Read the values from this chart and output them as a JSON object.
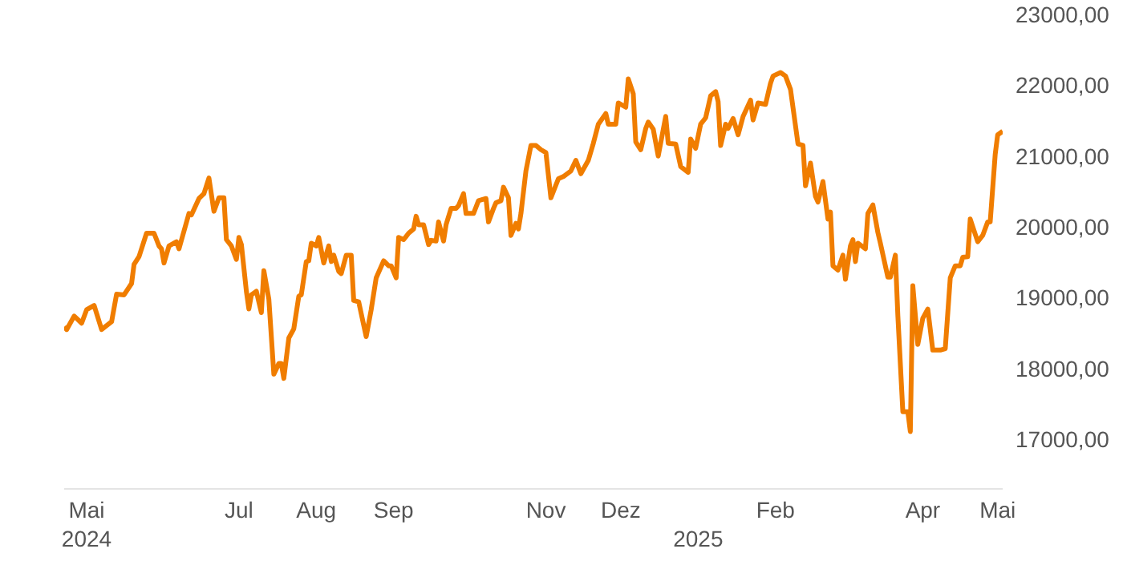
{
  "chart_data": {
    "type": "line",
    "x": [
      "2024-04-22",
      "2024-04-23",
      "2024-04-26",
      "2024-04-29",
      "2024-05-01",
      "2024-05-04",
      "2024-05-07",
      "2024-05-11",
      "2024-05-13",
      "2024-05-16",
      "2024-05-19",
      "2024-05-20",
      "2024-05-22",
      "2024-05-25",
      "2024-05-28",
      "2024-05-30",
      "2024-05-31",
      "2024-06-01",
      "2024-06-03",
      "2024-06-06",
      "2024-06-07",
      "2024-06-11",
      "2024-06-12",
      "2024-06-15",
      "2024-06-17",
      "2024-06-19",
      "2024-06-21",
      "2024-06-23",
      "2024-06-25",
      "2024-06-26",
      "2024-06-28",
      "2024-06-30",
      "2024-07-01",
      "2024-07-02",
      "2024-07-04",
      "2024-07-05",
      "2024-07-06",
      "2024-07-08",
      "2024-07-10",
      "2024-07-11",
      "2024-07-13",
      "2024-07-15",
      "2024-07-17",
      "2024-07-18",
      "2024-07-19",
      "2024-07-21",
      "2024-07-23",
      "2024-07-25",
      "2024-07-26",
      "2024-07-28",
      "2024-07-29",
      "2024-07-30",
      "2024-08-01",
      "2024-08-02",
      "2024-08-04",
      "2024-08-06",
      "2024-08-07",
      "2024-08-08",
      "2024-08-10",
      "2024-08-11",
      "2024-08-13",
      "2024-08-15",
      "2024-08-16",
      "2024-08-18",
      "2024-08-21",
      "2024-08-23",
      "2024-08-25",
      "2024-08-28",
      "2024-08-30",
      "2024-08-31",
      "2024-09-02",
      "2024-09-03",
      "2024-09-05",
      "2024-09-07",
      "2024-09-09",
      "2024-09-10",
      "2024-09-11",
      "2024-09-13",
      "2024-09-15",
      "2024-09-16",
      "2024-09-18",
      "2024-09-19",
      "2024-09-21",
      "2024-09-22",
      "2024-09-24",
      "2024-09-26",
      "2024-09-27",
      "2024-09-29",
      "2024-09-30",
      "2024-10-03",
      "2024-10-05",
      "2024-10-08",
      "2024-10-09",
      "2024-10-11",
      "2024-10-12",
      "2024-10-14",
      "2024-10-15",
      "2024-10-17",
      "2024-10-18",
      "2024-10-20",
      "2024-10-21",
      "2024-10-22",
      "2024-10-24",
      "2024-10-26",
      "2024-10-28",
      "2024-10-30",
      "2024-11-01",
      "2024-11-03",
      "2024-11-06",
      "2024-11-08",
      "2024-11-11",
      "2024-11-13",
      "2024-11-15",
      "2024-11-18",
      "2024-11-20",
      "2024-11-22",
      "2024-11-25",
      "2024-11-26",
      "2024-11-29",
      "2024-11-30",
      "2024-12-03",
      "2024-12-04",
      "2024-12-06",
      "2024-12-07",
      "2024-12-09",
      "2024-12-11",
      "2024-12-12",
      "2024-12-14",
      "2024-12-16",
      "2024-12-19",
      "2024-12-20",
      "2024-12-23",
      "2024-12-25",
      "2024-12-28",
      "2024-12-29",
      "2024-12-31",
      "2025-01-02",
      "2025-01-04",
      "2025-01-06",
      "2025-01-08",
      "2025-01-09",
      "2025-01-10",
      "2025-01-12",
      "2025-01-13",
      "2025-01-15",
      "2025-01-17",
      "2025-01-19",
      "2025-01-22",
      "2025-01-23",
      "2025-01-25",
      "2025-01-28",
      "2025-01-30",
      "2025-01-31",
      "2025-02-03",
      "2025-02-05",
      "2025-02-07",
      "2025-02-10",
      "2025-02-12",
      "2025-02-13",
      "2025-02-15",
      "2025-02-17",
      "2025-02-18",
      "2025-02-20",
      "2025-02-22",
      "2025-02-23",
      "2025-02-24",
      "2025-02-26",
      "2025-02-28",
      "2025-03-01",
      "2025-03-03",
      "2025-03-04",
      "2025-03-05",
      "2025-03-06",
      "2025-03-09",
      "2025-03-10",
      "2025-03-12",
      "2025-03-14",
      "2025-03-15",
      "2025-03-18",
      "2025-03-19",
      "2025-03-21",
      "2025-03-22",
      "2025-03-24",
      "2025-03-26",
      "2025-03-27",
      "2025-03-28",
      "2025-03-30",
      "2025-04-01",
      "2025-04-03",
      "2025-04-05",
      "2025-04-08",
      "2025-04-10",
      "2025-04-12",
      "2025-04-14",
      "2025-04-16",
      "2025-04-17",
      "2025-04-19",
      "2025-04-20",
      "2025-04-23",
      "2025-04-25",
      "2025-04-27",
      "2025-04-28",
      "2025-04-30",
      "2025-05-01",
      "2025-05-03"
    ],
    "series": [
      {
        "color": "#f07d00",
        "values": [
          18590,
          18550,
          18740,
          18640,
          18830,
          18890,
          18550,
          18660,
          19050,
          19040,
          19200,
          19470,
          19580,
          19910,
          19910,
          19730,
          19690,
          19490,
          19730,
          19790,
          19690,
          20190,
          20170,
          20400,
          20470,
          20690,
          20220,
          20410,
          20410,
          19820,
          19730,
          19540,
          19850,
          19750,
          19090,
          18840,
          19040,
          19090,
          18790,
          19380,
          18980,
          17920,
          18070,
          18070,
          17860,
          18430,
          18560,
          19020,
          19040,
          19510,
          19520,
          19770,
          19730,
          19850,
          19490,
          19730,
          19510,
          19600,
          19370,
          19340,
          19600,
          19600,
          18960,
          18940,
          18450,
          18830,
          19280,
          19520,
          19450,
          19450,
          19280,
          19850,
          19820,
          19910,
          19970,
          20150,
          20030,
          20030,
          19750,
          19810,
          19800,
          20070,
          19800,
          20030,
          20260,
          20260,
          20300,
          20470,
          20190,
          20190,
          20370,
          20400,
          20070,
          20260,
          20340,
          20370,
          20560,
          20410,
          19880,
          20050,
          19970,
          20190,
          20790,
          21150,
          21150,
          21090,
          21050,
          20410,
          20680,
          20710,
          20790,
          20940,
          20750,
          20940,
          21180,
          21450,
          21600,
          21450,
          21450,
          21750,
          21690,
          22090,
          21880,
          21200,
          21090,
          21390,
          21480,
          21380,
          21000,
          21560,
          21180,
          21170,
          20850,
          20770,
          21240,
          21110,
          21450,
          21540,
          21850,
          21910,
          21770,
          21150,
          21450,
          21390,
          21530,
          21300,
          21560,
          21790,
          21510,
          21750,
          21730,
          22030,
          22130,
          22180,
          22130,
          21940,
          21170,
          21150,
          20580,
          20900,
          20430,
          20350,
          20640,
          20110,
          20210,
          19450,
          19390,
          19600,
          19260,
          19730,
          19820,
          19510,
          19770,
          19690,
          20190,
          20310,
          19920,
          19770,
          19290,
          19290,
          19600,
          18750,
          17390,
          17390,
          17110,
          19170,
          18340,
          18710,
          18840,
          18260,
          18260,
          18280,
          19280,
          19450,
          19450,
          19570,
          19580,
          20110,
          19790,
          19880,
          20070,
          20070,
          21020,
          21300,
          21350
        ]
      }
    ],
    "xlim": [
      "2024-04-22",
      "2025-05-03"
    ],
    "xticks": [
      {
        "value": "2024-05-01",
        "label": "Mai"
      },
      {
        "value": "2024-07-01",
        "label": "Jul"
      },
      {
        "value": "2024-08-01",
        "label": "Aug"
      },
      {
        "value": "2024-09-01",
        "label": "Sep"
      },
      {
        "value": "2024-11-01",
        "label": "Nov"
      },
      {
        "value": "2024-12-01",
        "label": "Dez"
      },
      {
        "value": "2025-02-01",
        "label": "Feb"
      },
      {
        "value": "2025-04-01",
        "label": "Apr"
      },
      {
        "value": "2025-05-01",
        "label": "Mai"
      }
    ],
    "x2lim": [
      "2024-04-22",
      "2025-05-03"
    ],
    "x2ticks": [
      {
        "value": "2024-05-01",
        "label": "2024"
      },
      {
        "value": "2025-01-01",
        "label": "2025"
      }
    ],
    "ylim": [
      16300,
      23000
    ],
    "yticks": [
      {
        "value": 17000,
        "label": "17000,00"
      },
      {
        "value": 18000,
        "label": "18000,00"
      },
      {
        "value": 19000,
        "label": "19000,00"
      },
      {
        "value": 20000,
        "label": "20000,00"
      },
      {
        "value": 21000,
        "label": "21000,00"
      },
      {
        "value": 22000,
        "label": "22000,00"
      },
      {
        "value": 23000,
        "label": "23000,00"
      }
    ]
  }
}
